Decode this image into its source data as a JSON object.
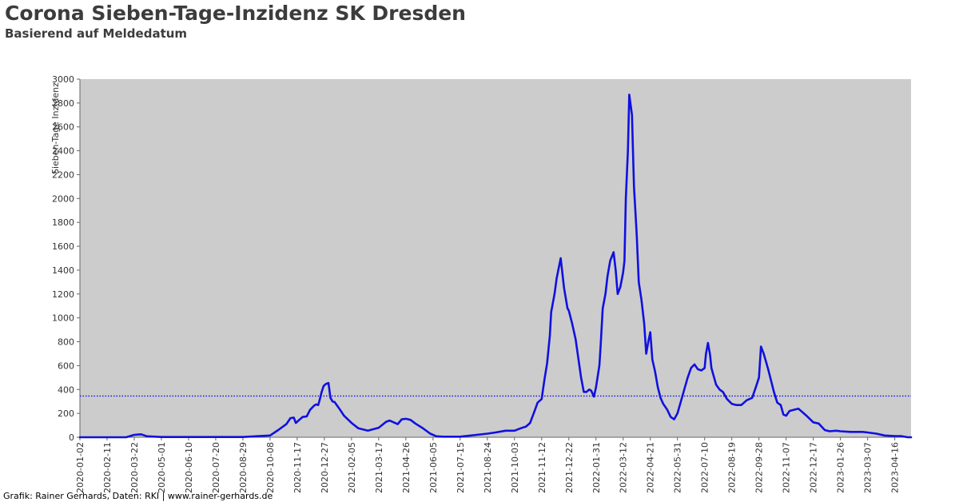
{
  "chart_data": {
    "type": "line",
    "title": "Corona Sieben-Tage-Inzidenz SK Dresden",
    "subtitle": "Basierend auf Meldedatum",
    "ylabel": "Sieben-Tage Inzidenz",
    "xlabel": "",
    "ylim": [
      0,
      3000
    ],
    "xlim": [
      "2020-01-02",
      "2023-05-10"
    ],
    "y_ticks": [
      0,
      200,
      400,
      600,
      800,
      1000,
      1200,
      1400,
      1600,
      1800,
      2000,
      2200,
      2400,
      2600,
      2800,
      3000
    ],
    "x_ticks": [
      "2020-01-02",
      "2020-02-11",
      "2020-03-22",
      "2020-05-01",
      "2020-06-10",
      "2020-07-20",
      "2020-08-29",
      "2020-10-08",
      "2020-11-17",
      "2020-12-27",
      "2021-02-05",
      "2021-03-17",
      "2021-04-26",
      "2021-06-05",
      "2021-07-15",
      "2021-08-24",
      "2021-10-03",
      "2021-11-12",
      "2021-12-22",
      "2022-01-31",
      "2022-03-12",
      "2022-04-21",
      "2022-05-31",
      "2022-07-10",
      "2022-08-19",
      "2022-09-28",
      "2022-11-07",
      "2022-12-17",
      "2023-01-26",
      "2023-03-07",
      "2023-04-16"
    ],
    "grid": false,
    "reference_line": {
      "value": 345,
      "style": "dotted",
      "color": "#1010e0"
    },
    "series": [
      {
        "color": "#1010e0",
        "x": [
          "2020-01-02",
          "2020-03-10",
          "2020-03-22",
          "2020-04-01",
          "2020-04-10",
          "2020-05-01",
          "2020-08-29",
          "2020-10-08",
          "2020-10-20",
          "2020-11-01",
          "2020-11-07",
          "2020-11-12",
          "2020-11-15",
          "2020-11-20",
          "2020-11-25",
          "2020-12-01",
          "2020-12-06",
          "2020-12-12",
          "2020-12-15",
          "2020-12-18",
          "2020-12-20",
          "2020-12-23",
          "2020-12-26",
          "2020-12-29",
          "2021-01-02",
          "2021-01-05",
          "2021-01-08",
          "2021-01-11",
          "2021-01-18",
          "2021-01-25",
          "2021-02-05",
          "2021-02-15",
          "2021-03-01",
          "2021-03-17",
          "2021-03-28",
          "2021-04-02",
          "2021-04-10",
          "2021-04-14",
          "2021-04-20",
          "2021-04-26",
          "2021-05-03",
          "2021-05-10",
          "2021-05-20",
          "2021-06-01",
          "2021-06-10",
          "2021-06-20",
          "2021-07-15",
          "2021-08-24",
          "2021-09-05",
          "2021-09-20",
          "2021-10-03",
          "2021-10-12",
          "2021-10-20",
          "2021-10-26",
          "2021-11-01",
          "2021-11-06",
          "2021-11-12",
          "2021-11-16",
          "2021-11-20",
          "2021-11-24",
          "2021-11-26",
          "2021-12-01",
          "2021-12-04",
          "2021-12-10",
          "2021-12-15",
          "2021-12-20",
          "2021-12-22",
          "2021-12-27",
          "2022-01-01",
          "2022-01-05",
          "2022-01-09",
          "2022-01-13",
          "2022-01-17",
          "2022-01-21",
          "2022-01-24",
          "2022-01-28",
          "2022-01-31",
          "2022-02-05",
          "2022-02-07",
          "2022-02-10",
          "2022-02-14",
          "2022-02-17",
          "2022-02-21",
          "2022-02-26",
          "2022-03-01",
          "2022-03-04",
          "2022-03-08",
          "2022-03-12",
          "2022-03-14",
          "2022-03-16",
          "2022-03-19",
          "2022-03-21",
          "2022-03-25",
          "2022-03-28",
          "2022-04-01",
          "2022-04-04",
          "2022-04-08",
          "2022-04-12",
          "2022-04-15",
          "2022-04-18",
          "2022-04-21",
          "2022-04-24",
          "2022-04-28",
          "2022-05-02",
          "2022-05-06",
          "2022-05-10",
          "2022-05-16",
          "2022-05-21",
          "2022-05-26",
          "2022-05-31",
          "2022-06-05",
          "2022-06-10",
          "2022-06-15",
          "2022-06-20",
          "2022-06-25",
          "2022-06-30",
          "2022-07-05",
          "2022-07-10",
          "2022-07-12",
          "2022-07-15",
          "2022-07-18",
          "2022-07-20",
          "2022-07-23",
          "2022-07-27",
          "2022-08-01",
          "2022-08-06",
          "2022-08-12",
          "2022-08-19",
          "2022-08-26",
          "2022-09-02",
          "2022-09-10",
          "2022-09-18",
          "2022-09-24",
          "2022-09-28",
          "2022-10-01",
          "2022-10-05",
          "2022-10-08",
          "2022-10-12",
          "2022-10-16",
          "2022-10-20",
          "2022-10-25",
          "2022-10-30",
          "2022-11-03",
          "2022-11-07",
          "2022-11-12",
          "2022-11-18",
          "2022-11-25",
          "2022-12-01",
          "2022-12-07",
          "2022-12-17",
          "2022-12-25",
          "2023-01-03",
          "2023-01-10",
          "2023-01-20",
          "2023-01-26",
          "2023-02-10",
          "2023-02-28",
          "2023-03-07",
          "2023-03-20",
          "2023-04-01",
          "2023-04-16",
          "2023-04-25",
          "2023-05-05",
          "2023-05-10"
        ],
        "y": [
          0,
          0,
          20,
          25,
          8,
          2,
          2,
          15,
          60,
          110,
          160,
          165,
          120,
          145,
          170,
          175,
          230,
          265,
          275,
          270,
          310,
          380,
          430,
          445,
          455,
          330,
          300,
          295,
          240,
          180,
          120,
          75,
          55,
          80,
          130,
          140,
          120,
          110,
          150,
          155,
          145,
          115,
          80,
          30,
          8,
          5,
          5,
          30,
          40,
          55,
          55,
          75,
          90,
          120,
          210,
          290,
          320,
          480,
          620,
          850,
          1050,
          1200,
          1330,
          1500,
          1250,
          1080,
          1060,
          950,
          820,
          660,
          500,
          380,
          380,
          400,
          390,
          340,
          420,
          600,
          780,
          1080,
          1200,
          1350,
          1480,
          1550,
          1400,
          1200,
          1260,
          1380,
          1480,
          2000,
          2400,
          2870,
          2700,
          2100,
          1700,
          1300,
          1150,
          950,
          700,
          800,
          880,
          650,
          550,
          420,
          330,
          280,
          230,
          170,
          150,
          200,
          300,
          400,
          500,
          580,
          610,
          570,
          560,
          580,
          700,
          790,
          690,
          580,
          520,
          440,
          400,
          380,
          320,
          280,
          270,
          270,
          310,
          330,
          430,
          500,
          760,
          700,
          640,
          560,
          470,
          380,
          290,
          270,
          190,
          180,
          220,
          230,
          240,
          210,
          180,
          125,
          115,
          60,
          50,
          55,
          50,
          45,
          45,
          40,
          30,
          15,
          10,
          10,
          0,
          0
        ]
      }
    ],
    "footer": "Grafik: Rainer Gerhards, Daten: RKI | www.rainer-gerhards.de"
  }
}
